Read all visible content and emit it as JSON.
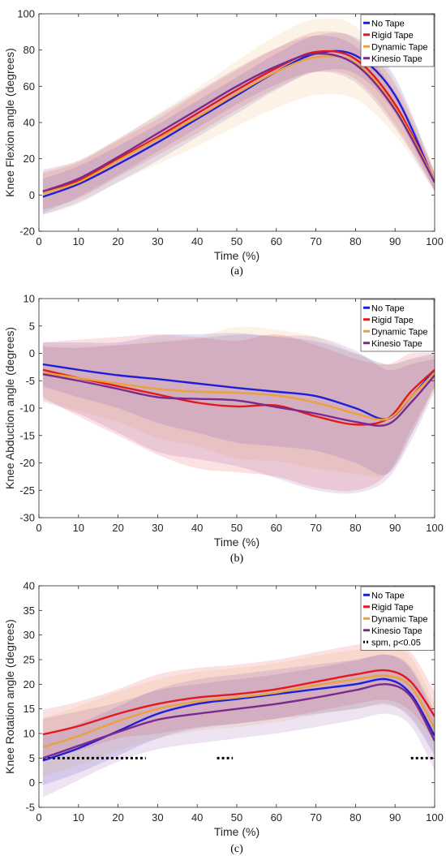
{
  "colors": {
    "no_tape": "#1f1fd6",
    "rigid_tape": "#e31a1c",
    "dynamic_tape": "#e8a33a",
    "kinesio_tape": "#7a2a8e"
  },
  "chart_data": [
    {
      "type": "line",
      "caption": "(a)",
      "xlabel": "Time (%)",
      "ylabel": "Knee Flexion angle (degrees)",
      "xlim": [
        0,
        100
      ],
      "ylim": [
        -20,
        100
      ],
      "xticks": [
        0,
        10,
        20,
        30,
        40,
        50,
        60,
        70,
        80,
        90,
        100
      ],
      "yticks": [
        -20,
        0,
        20,
        40,
        60,
        80,
        100
      ],
      "legend": "top-right",
      "x": [
        1,
        10,
        20,
        30,
        40,
        50,
        60,
        70,
        80,
        90,
        100
      ],
      "series": [
        {
          "name": "No Tape",
          "color_key": "no_tape",
          "values": [
            -1,
            6,
            17,
            29,
            42,
            55,
            68,
            78,
            77,
            55,
            7
          ],
          "band": [
            10,
            10,
            10,
            10,
            10,
            10,
            10,
            10,
            10,
            10,
            5
          ]
        },
        {
          "name": "Rigid Tape",
          "color_key": "rigid_tape",
          "values": [
            2,
            8,
            20,
            32,
            45,
            58,
            70,
            79,
            75,
            50,
            8
          ],
          "band": [
            10,
            10,
            10,
            10,
            11,
            11,
            11,
            11,
            11,
            11,
            5
          ]
        },
        {
          "name": "Dynamic Tape",
          "color_key": "dynamic_tape",
          "values": [
            1,
            7,
            19,
            31,
            43,
            56,
            68,
            76,
            73,
            48,
            8
          ],
          "band": [
            12,
            12,
            12,
            14,
            16,
            18,
            20,
            21,
            20,
            15,
            6
          ]
        },
        {
          "name": "Kinesio Tape",
          "color_key": "kinesio_tape",
          "values": [
            2,
            9,
            21,
            34,
            47,
            60,
            71,
            78,
            72,
            47,
            7
          ],
          "band": [
            12,
            10,
            10,
            10,
            10,
            10,
            10,
            10,
            10,
            10,
            5
          ]
        }
      ]
    },
    {
      "type": "line",
      "caption": "(b)",
      "xlabel": "Time (%)",
      "ylabel": "Knee Abduction angle (degrees)",
      "xlim": [
        0,
        100
      ],
      "ylim": [
        -30,
        10
      ],
      "xticks": [
        0,
        10,
        20,
        30,
        40,
        50,
        60,
        70,
        80,
        90,
        100
      ],
      "yticks": [
        -30,
        -25,
        -20,
        -15,
        -10,
        -5,
        0,
        5,
        10
      ],
      "legend": "top-right",
      "x": [
        1,
        10,
        20,
        30,
        40,
        50,
        60,
        70,
        80,
        88,
        94,
        100
      ],
      "series": [
        {
          "name": "No Tape",
          "color_key": "no_tape",
          "values": [
            -2,
            -3,
            -4,
            -4.7,
            -5.5,
            -6.3,
            -7,
            -7.8,
            -10,
            -12,
            -8,
            -3
          ],
          "band": [
            4,
            5,
            6,
            8,
            9,
            10,
            10,
            10,
            10,
            10,
            7,
            3
          ]
        },
        {
          "name": "Rigid Tape",
          "color_key": "rigid_tape",
          "values": [
            -3,
            -4.5,
            -6,
            -7.5,
            -9,
            -9.7,
            -9.5,
            -11.5,
            -13,
            -12,
            -7,
            -3
          ],
          "band": [
            5,
            7,
            9,
            11,
            12,
            12,
            13,
            13,
            12,
            10,
            7,
            3
          ]
        },
        {
          "name": "Dynamic Tape",
          "color_key": "dynamic_tape",
          "values": [
            -3.5,
            -4.5,
            -5.5,
            -6.5,
            -7,
            -7.2,
            -7.7,
            -9,
            -11,
            -12,
            -8,
            -3.5
          ],
          "band": [
            5,
            6,
            7,
            9,
            10,
            12,
            12,
            12,
            11,
            10,
            7,
            3
          ]
        },
        {
          "name": "Kinesio Tape",
          "color_key": "kinesio_tape",
          "values": [
            -3.8,
            -5,
            -6.5,
            -8,
            -8.3,
            -8.6,
            -9.8,
            -11,
            -12.5,
            -13,
            -9,
            -4
          ],
          "band": [
            5,
            6,
            8,
            10,
            11,
            12,
            13,
            14,
            13,
            10,
            7,
            3
          ]
        }
      ]
    },
    {
      "type": "line",
      "caption": "(c)",
      "xlabel": "Time (%)",
      "ylabel": "Knee Rotation angle (degrees)",
      "xlim": [
        0,
        100
      ],
      "ylim": [
        -5,
        40
      ],
      "xticks": [
        0,
        10,
        20,
        30,
        40,
        50,
        60,
        70,
        80,
        90,
        100
      ],
      "yticks": [
        -5,
        0,
        5,
        10,
        15,
        20,
        25,
        30,
        35,
        40
      ],
      "legend": "top-right",
      "x": [
        1,
        10,
        20,
        30,
        40,
        50,
        60,
        70,
        80,
        88,
        94,
        100
      ],
      "series": [
        {
          "name": "No Tape",
          "color_key": "no_tape",
          "values": [
            4.5,
            7,
            10.5,
            14,
            16,
            17,
            18,
            19,
            20,
            21,
            18,
            9.5
          ],
          "band": [
            5,
            5,
            5,
            5,
            5,
            5,
            5,
            5,
            5,
            5,
            5,
            4
          ]
        },
        {
          "name": "Rigid Tape",
          "color_key": "rigid_tape",
          "values": [
            9.8,
            11.5,
            14,
            16,
            17.3,
            18,
            19,
            20.5,
            22,
            22.8,
            20.5,
            13.5
          ],
          "band": [
            5,
            5,
            5,
            6,
            6,
            6,
            6,
            6,
            6,
            6,
            6,
            5
          ]
        },
        {
          "name": "Dynamic Tape",
          "color_key": "dynamic_tape",
          "values": [
            7.2,
            9.5,
            12.5,
            15,
            16.5,
            17.3,
            18.3,
            19.8,
            21,
            21.7,
            19.5,
            11
          ],
          "band": [
            6,
            6,
            6,
            6,
            6,
            6,
            6,
            6,
            6,
            6,
            6,
            5
          ]
        },
        {
          "name": "Kinesio Tape",
          "color_key": "kinesio_tape",
          "values": [
            5,
            7.5,
            10.3,
            12.8,
            14,
            15,
            16,
            17.3,
            18.8,
            20,
            17.5,
            8.5
          ],
          "band": [
            8,
            7,
            6,
            6,
            6,
            6,
            6,
            6,
            6,
            6,
            6,
            6
          ]
        }
      ],
      "spm_label": "spm, p<0.05",
      "spm_y": 5,
      "spm_intervals": [
        [
          1,
          27
        ],
        [
          45,
          49
        ],
        [
          94,
          100
        ]
      ]
    }
  ]
}
